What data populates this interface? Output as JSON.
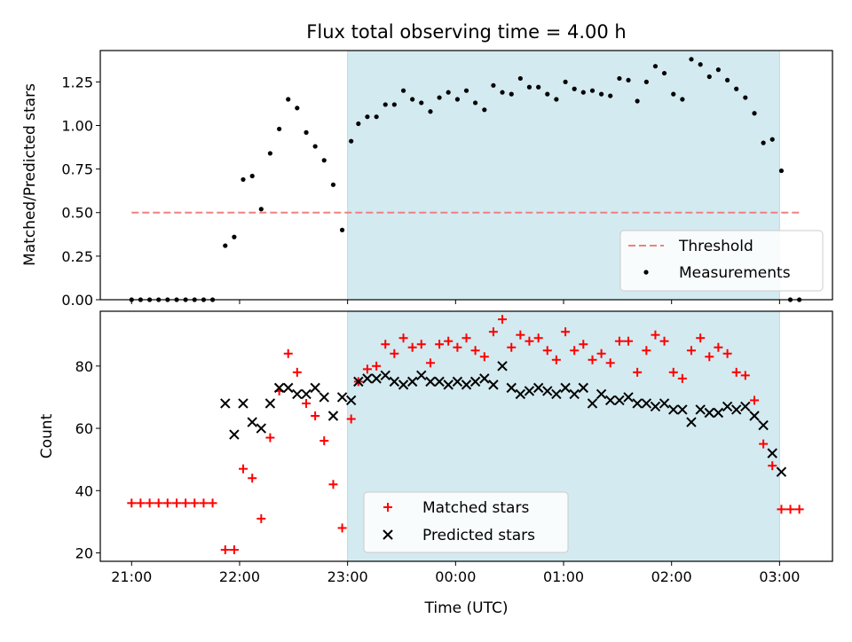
{
  "chart_data": [
    {
      "type": "scatter",
      "title": "Flux total observing time = 4.00 h",
      "xlabel": "",
      "ylabel": "Matched/Predicted stars",
      "ylim": [
        0,
        1.43
      ],
      "yticks": [
        "0.00",
        "0.25",
        "0.50",
        "0.75",
        "1.00",
        "1.25"
      ],
      "x_axis": "time_hours_from_21:00",
      "xlim": [
        -0.29,
        6.49
      ],
      "shaded_region": [
        2.0,
        6.0
      ],
      "shaded_color": "#d3eaf0",
      "threshold": {
        "name": "Threshold",
        "value": 0.5,
        "x_range": [
          0.0,
          6.2
        ],
        "color": "#f08080"
      },
      "series": [
        {
          "name": "Measurements",
          "color": "#000000",
          "marker": "dot",
          "points": [
            [
              0.0,
              0
            ],
            [
              0.083,
              0
            ],
            [
              0.167,
              0
            ],
            [
              0.25,
              0
            ],
            [
              0.333,
              0
            ],
            [
              0.417,
              0
            ],
            [
              0.5,
              0
            ],
            [
              0.583,
              0
            ],
            [
              0.667,
              0
            ],
            [
              0.75,
              0
            ],
            [
              0.867,
              0.31
            ],
            [
              0.95,
              0.36
            ],
            [
              1.033,
              0.69
            ],
            [
              1.117,
              0.71
            ],
            [
              1.2,
              0.52
            ],
            [
              1.283,
              0.84
            ],
            [
              1.367,
              0.98
            ],
            [
              1.45,
              1.15
            ],
            [
              1.533,
              1.1
            ],
            [
              1.617,
              0.96
            ],
            [
              1.7,
              0.88
            ],
            [
              1.783,
              0.8
            ],
            [
              1.867,
              0.66
            ],
            [
              1.95,
              0.4
            ],
            [
              2.033,
              0.91
            ],
            [
              2.1,
              1.01
            ],
            [
              2.183,
              1.05
            ],
            [
              2.267,
              1.05
            ],
            [
              2.35,
              1.12
            ],
            [
              2.433,
              1.12
            ],
            [
              2.517,
              1.2
            ],
            [
              2.6,
              1.15
            ],
            [
              2.683,
              1.13
            ],
            [
              2.767,
              1.08
            ],
            [
              2.85,
              1.16
            ],
            [
              2.933,
              1.19
            ],
            [
              3.017,
              1.15
            ],
            [
              3.1,
              1.2
            ],
            [
              3.183,
              1.13
            ],
            [
              3.267,
              1.09
            ],
            [
              3.35,
              1.23
            ],
            [
              3.433,
              1.19
            ],
            [
              3.517,
              1.18
            ],
            [
              3.6,
              1.27
            ],
            [
              3.683,
              1.22
            ],
            [
              3.767,
              1.22
            ],
            [
              3.85,
              1.18
            ],
            [
              3.933,
              1.15
            ],
            [
              4.017,
              1.25
            ],
            [
              4.1,
              1.21
            ],
            [
              4.183,
              1.19
            ],
            [
              4.267,
              1.2
            ],
            [
              4.35,
              1.18
            ],
            [
              4.433,
              1.17
            ],
            [
              4.517,
              1.27
            ],
            [
              4.6,
              1.26
            ],
            [
              4.683,
              1.14
            ],
            [
              4.767,
              1.25
            ],
            [
              4.85,
              1.34
            ],
            [
              4.933,
              1.3
            ],
            [
              5.017,
              1.18
            ],
            [
              5.1,
              1.15
            ],
            [
              5.183,
              1.38
            ],
            [
              5.267,
              1.35
            ],
            [
              5.35,
              1.28
            ],
            [
              5.433,
              1.32
            ],
            [
              5.517,
              1.26
            ],
            [
              5.6,
              1.21
            ],
            [
              5.683,
              1.16
            ],
            [
              5.767,
              1.07
            ],
            [
              5.85,
              0.9
            ],
            [
              5.933,
              0.92
            ],
            [
              6.017,
              0.74
            ],
            [
              6.1,
              0
            ],
            [
              6.183,
              0
            ]
          ]
        }
      ],
      "legend": {
        "position": "lower-right",
        "entries": [
          "Threshold",
          "Measurements"
        ]
      }
    },
    {
      "type": "scatter",
      "title": "",
      "xlabel": "Time (UTC)",
      "ylabel": "Count",
      "ylim": [
        17.3,
        97.6
      ],
      "yticks": [
        "20",
        "40",
        "60",
        "80"
      ],
      "x_axis": "time_hours_from_21:00",
      "xlim": [
        -0.29,
        6.49
      ],
      "xticks": [
        "21:00",
        "22:00",
        "23:00",
        "00:00",
        "01:00",
        "02:00",
        "03:00"
      ],
      "shaded_region": [
        2.0,
        6.0
      ],
      "shaded_color": "#d3eaf0",
      "series": [
        {
          "name": "Matched stars",
          "color": "#ff0000",
          "marker": "plus",
          "points": [
            [
              0.0,
              36
            ],
            [
              0.083,
              36
            ],
            [
              0.167,
              36
            ],
            [
              0.25,
              36
            ],
            [
              0.333,
              36
            ],
            [
              0.417,
              36
            ],
            [
              0.5,
              36
            ],
            [
              0.583,
              36
            ],
            [
              0.667,
              36
            ],
            [
              0.75,
              36
            ],
            [
              0.867,
              21
            ],
            [
              0.95,
              21
            ],
            [
              1.033,
              47
            ],
            [
              1.117,
              44
            ],
            [
              1.2,
              31
            ],
            [
              1.283,
              57
            ],
            [
              1.367,
              72
            ],
            [
              1.45,
              84
            ],
            [
              1.533,
              78
            ],
            [
              1.617,
              68
            ],
            [
              1.7,
              64
            ],
            [
              1.783,
              56
            ],
            [
              1.867,
              42
            ],
            [
              1.95,
              28
            ],
            [
              2.033,
              63
            ],
            [
              2.1,
              75
            ],
            [
              2.183,
              79
            ],
            [
              2.267,
              80
            ],
            [
              2.35,
              87
            ],
            [
              2.433,
              84
            ],
            [
              2.517,
              89
            ],
            [
              2.6,
              86
            ],
            [
              2.683,
              87
            ],
            [
              2.767,
              81
            ],
            [
              2.85,
              87
            ],
            [
              2.933,
              88
            ],
            [
              3.017,
              86
            ],
            [
              3.1,
              89
            ],
            [
              3.183,
              85
            ],
            [
              3.267,
              83
            ],
            [
              3.35,
              91
            ],
            [
              3.433,
              95
            ],
            [
              3.517,
              86
            ],
            [
              3.6,
              90
            ],
            [
              3.683,
              88
            ],
            [
              3.767,
              89
            ],
            [
              3.85,
              85
            ],
            [
              3.933,
              82
            ],
            [
              4.017,
              91
            ],
            [
              4.1,
              85
            ],
            [
              4.183,
              87
            ],
            [
              4.267,
              82
            ],
            [
              4.35,
              84
            ],
            [
              4.433,
              81
            ],
            [
              4.517,
              88
            ],
            [
              4.6,
              88
            ],
            [
              4.683,
              78
            ],
            [
              4.767,
              85
            ],
            [
              4.85,
              90
            ],
            [
              4.933,
              88
            ],
            [
              5.017,
              78
            ],
            [
              5.1,
              76
            ],
            [
              5.183,
              85
            ],
            [
              5.267,
              89
            ],
            [
              5.35,
              83
            ],
            [
              5.433,
              86
            ],
            [
              5.517,
              84
            ],
            [
              5.6,
              78
            ],
            [
              5.683,
              77
            ],
            [
              5.767,
              69
            ],
            [
              5.85,
              55
            ],
            [
              5.933,
              48
            ],
            [
              6.017,
              34
            ],
            [
              6.1,
              34
            ],
            [
              6.183,
              34
            ]
          ]
        },
        {
          "name": "Predicted stars",
          "color": "#000000",
          "marker": "x",
          "points": [
            [
              0.867,
              68
            ],
            [
              0.95,
              58
            ],
            [
              1.033,
              68
            ],
            [
              1.117,
              62
            ],
            [
              1.2,
              60
            ],
            [
              1.283,
              68
            ],
            [
              1.367,
              73
            ],
            [
              1.45,
              73
            ],
            [
              1.533,
              71
            ],
            [
              1.617,
              71
            ],
            [
              1.7,
              73
            ],
            [
              1.783,
              70
            ],
            [
              1.867,
              64
            ],
            [
              1.95,
              70
            ],
            [
              2.033,
              69
            ],
            [
              2.1,
              75
            ],
            [
              2.183,
              76
            ],
            [
              2.267,
              76
            ],
            [
              2.35,
              77
            ],
            [
              2.433,
              75
            ],
            [
              2.517,
              74
            ],
            [
              2.6,
              75
            ],
            [
              2.683,
              77
            ],
            [
              2.767,
              75
            ],
            [
              2.85,
              75
            ],
            [
              2.933,
              74
            ],
            [
              3.017,
              75
            ],
            [
              3.1,
              74
            ],
            [
              3.183,
              75
            ],
            [
              3.267,
              76
            ],
            [
              3.35,
              74
            ],
            [
              3.433,
              80
            ],
            [
              3.517,
              73
            ],
            [
              3.6,
              71
            ],
            [
              3.683,
              72
            ],
            [
              3.767,
              73
            ],
            [
              3.85,
              72
            ],
            [
              3.933,
              71
            ],
            [
              4.017,
              73
            ],
            [
              4.1,
              71
            ],
            [
              4.183,
              73
            ],
            [
              4.267,
              68
            ],
            [
              4.35,
              71
            ],
            [
              4.433,
              69
            ],
            [
              4.517,
              69
            ],
            [
              4.6,
              70
            ],
            [
              4.683,
              68
            ],
            [
              4.767,
              68
            ],
            [
              4.85,
              67
            ],
            [
              4.933,
              68
            ],
            [
              5.017,
              66
            ],
            [
              5.1,
              66
            ],
            [
              5.183,
              62
            ],
            [
              5.267,
              66
            ],
            [
              5.35,
              65
            ],
            [
              5.433,
              65
            ],
            [
              5.517,
              67
            ],
            [
              5.6,
              66
            ],
            [
              5.683,
              67
            ],
            [
              5.767,
              64
            ],
            [
              5.85,
              61
            ],
            [
              5.933,
              52
            ],
            [
              6.017,
              46
            ]
          ]
        }
      ],
      "legend": {
        "position": "lower-center",
        "entries": [
          "Matched stars",
          "Predicted stars"
        ]
      }
    }
  ]
}
